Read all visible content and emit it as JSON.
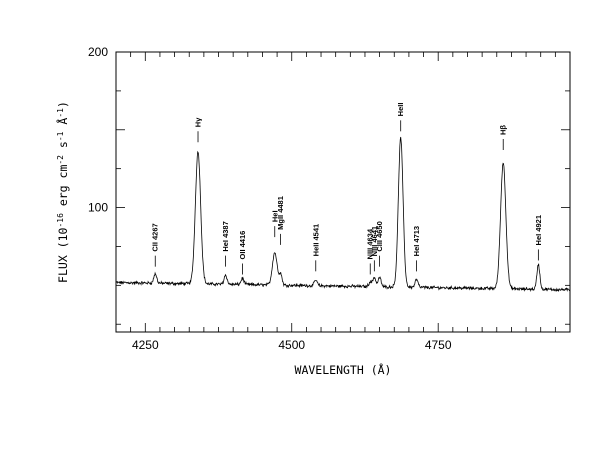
{
  "chart_data": {
    "type": "line",
    "xlabel": "WAVELENGTH (Å)",
    "ylabel": "FLUX (10^-16 erg cm^-2 s^-1 Å^-1)",
    "ylabel_parts": {
      "a": "FLUX (10",
      "b": "-16",
      "c": " erg cm",
      "d": "-2",
      "e": " s",
      "f": "-1",
      "g": " Å",
      "h": "-1",
      "i": ")"
    },
    "xlim": [
      4200,
      4975
    ],
    "ylim": [
      20,
      200
    ],
    "xticks": [
      4250,
      4500,
      4750
    ],
    "yticks": [
      100,
      200
    ],
    "x_major_ticks": [
      4250,
      4500,
      4750
    ],
    "x_minor_step": 25,
    "y_major_ticks": [
      100,
      150,
      200
    ],
    "y_minor_step": 25,
    "continuum_level": 50,
    "continuum_slope_per_A": -0.006,
    "series": [
      {
        "lines": [
          {
            "center": 4267,
            "amp": 6,
            "sigma": 2.5
          },
          {
            "center": 4340,
            "amp": 85,
            "sigma": 4.5
          },
          {
            "center": 4387,
            "amp": 6,
            "sigma": 2.5
          },
          {
            "center": 4416,
            "amp": 4,
            "sigma": 2.5
          },
          {
            "center": 4471,
            "amp": 21,
            "sigma": 4
          },
          {
            "center": 4481,
            "amp": 7,
            "sigma": 2.5
          },
          {
            "center": 4541,
            "amp": 3.5,
            "sigma": 2.5
          },
          {
            "center": 4634,
            "amp": 3,
            "sigma": 2.5
          },
          {
            "center": 4641,
            "amp": 6,
            "sigma": 2.5
          },
          {
            "center": 4650,
            "amp": 6,
            "sigma": 2.5
          },
          {
            "center": 4686,
            "amp": 96,
            "sigma": 4
          },
          {
            "center": 4713,
            "amp": 5,
            "sigma": 2.5
          },
          {
            "center": 4861,
            "amp": 81,
            "sigma": 4.5
          },
          {
            "center": 4921,
            "amp": 16,
            "sigma": 2.5
          }
        ]
      }
    ],
    "annotations": [
      {
        "text": "CII 4267",
        "x": 4267,
        "y": 62
      },
      {
        "text": "Hγ",
        "x": 4340,
        "y": 142
      },
      {
        "text": "HeI 4387",
        "x": 4387,
        "y": 62
      },
      {
        "text": "OII 4416",
        "x": 4416,
        "y": 57
      },
      {
        "text": "HeI",
        "x": 4471,
        "y": 81
      },
      {
        "text": "MgII 4481",
        "x": 4481,
        "y": 76
      },
      {
        "text": "HeII 4541",
        "x": 4541,
        "y": 59
      },
      {
        "text": "NIII 4634",
        "x": 4634,
        "y": 57
      },
      {
        "text": "NIII 4641",
        "x": 4641,
        "y": 59
      },
      {
        "text": "CIII 4650",
        "x": 4650,
        "y": 62
      },
      {
        "text": "HeII",
        "x": 4686,
        "y": 149
      },
      {
        "text": "HeI 4713",
        "x": 4713,
        "y": 59
      },
      {
        "text": "Hβ",
        "x": 4861,
        "y": 137
      },
      {
        "text": "HeI 4921",
        "x": 4921,
        "y": 66
      }
    ],
    "grid": false,
    "legend": "none"
  },
  "colors": {
    "line": "#000000",
    "axes": "#000000",
    "background": "#ffffff"
  }
}
